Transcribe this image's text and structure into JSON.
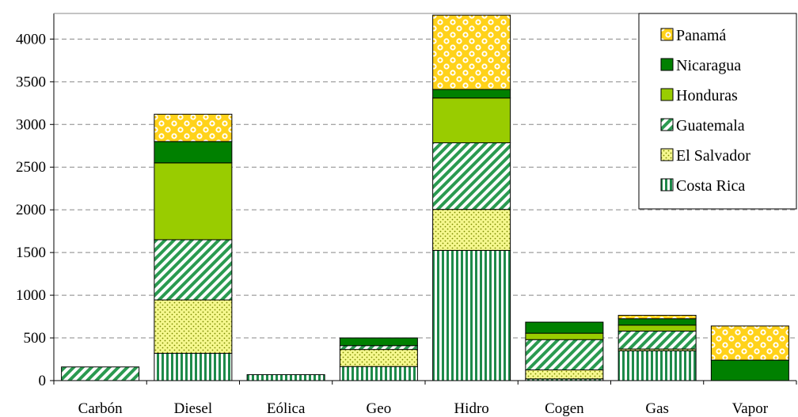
{
  "chart_data": {
    "type": "bar",
    "stacked": true,
    "categories": [
      "Carbón",
      "Diesel",
      "Eólica",
      "Geo",
      "Hidro",
      "Cogen",
      "Gas",
      "Vapor"
    ],
    "ylim": [
      0,
      4300
    ],
    "yticks": [
      0,
      500,
      1000,
      1500,
      2000,
      2500,
      3000,
      3500,
      4000
    ],
    "grid": "horizontal dashed",
    "legend_position": "top-right",
    "series": [
      {
        "name": "Costa Rica",
        "color": "#1e8a4a",
        "pattern": "vertical-stripes",
        "values": [
          0,
          320,
          70,
          165,
          1525,
          20,
          350,
          0
        ]
      },
      {
        "name": "El Salvador",
        "color": "#f2f57a",
        "pattern": "dots",
        "values": [
          0,
          625,
          0,
          200,
          480,
          105,
          20,
          0
        ]
      },
      {
        "name": "Guatemala",
        "color": "#2a9a50",
        "pattern": "diagonal-stripes",
        "values": [
          160,
          705,
          0,
          45,
          780,
          355,
          210,
          0
        ]
      },
      {
        "name": "Honduras",
        "color": "#99cc00",
        "pattern": "solid",
        "values": [
          0,
          900,
          0,
          0,
          525,
          75,
          70,
          0
        ]
      },
      {
        "name": "Nicaragua",
        "color": "#008000",
        "pattern": "solid",
        "values": [
          0,
          250,
          0,
          90,
          100,
          130,
          75,
          240
        ]
      },
      {
        "name": "Panamá",
        "color": "#ffcc00",
        "pattern": "checker",
        "values": [
          0,
          320,
          0,
          0,
          870,
          0,
          40,
          400
        ]
      }
    ]
  },
  "icons": {
    "legend_swatch": "pattern-swatch"
  }
}
